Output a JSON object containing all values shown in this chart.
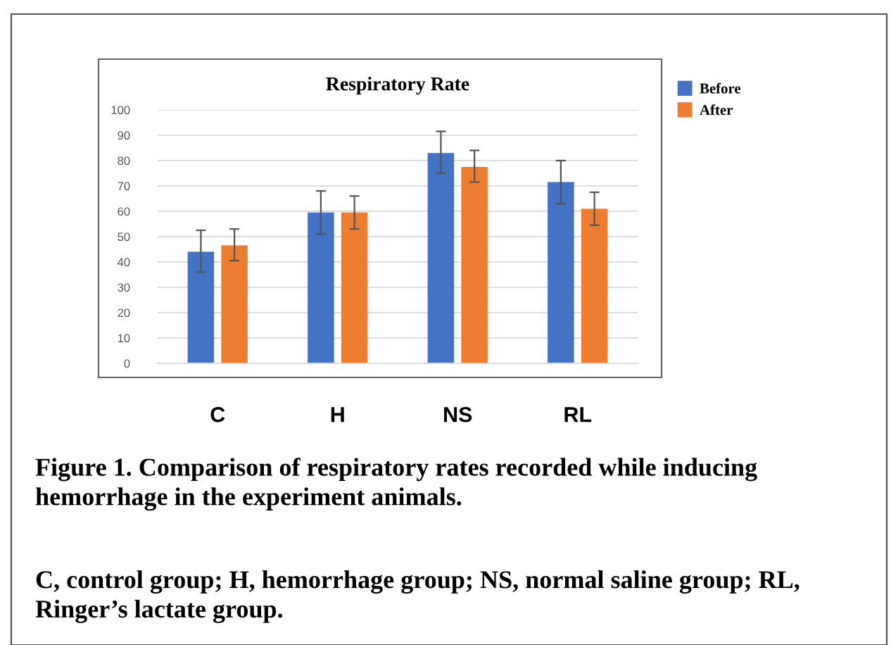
{
  "chart_data": {
    "type": "bar",
    "title": "Respiratory Rate",
    "categories": [
      "C",
      "H",
      "NS",
      "RL"
    ],
    "series": [
      {
        "name": "Before",
        "color": "#4472c4",
        "values": [
          44,
          59.5,
          83,
          71.5
        ],
        "errors": [
          [
            36,
            52.5
          ],
          [
            51,
            68
          ],
          [
            75,
            91.5
          ],
          [
            63,
            80
          ]
        ]
      },
      {
        "name": "After",
        "color": "#ed7d31",
        "values": [
          46.5,
          59.5,
          77.5,
          61
        ],
        "errors": [
          [
            40.5,
            53
          ],
          [
            53,
            66
          ],
          [
            71.5,
            84
          ],
          [
            54.5,
            67.5
          ]
        ]
      }
    ],
    "ylim": [
      0,
      100
    ],
    "yticks": [
      0,
      10,
      20,
      30,
      40,
      50,
      60,
      70,
      80,
      90,
      100
    ],
    "grid": "y",
    "legend": "top right",
    "annotations": [
      "Figure 1. Comparison of respiratory rates recorded while inducing hemorrhage in the experiment animals.",
      "C, control group; H, hemorrhage group; NS, normal saline group; RL, Ringer’s lactate group."
    ]
  }
}
